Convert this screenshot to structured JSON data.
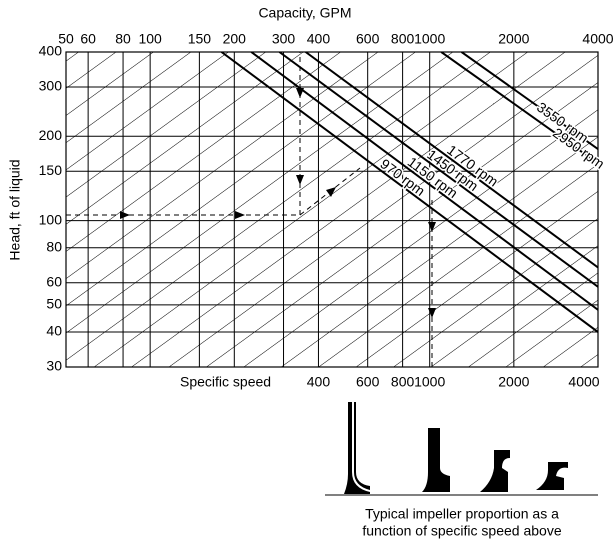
{
  "chart_data": {
    "type": "line",
    "title": "Capacity, GPM",
    "y_label": "Head, ft of liquid",
    "x2_label": "Specific speed",
    "log_x": true,
    "log_y": true,
    "grid": true,
    "color": "#000000",
    "xlim": [
      50,
      4000
    ],
    "ylim": [
      30,
      400
    ],
    "xticks": [
      50,
      60,
      80,
      100,
      150,
      200,
      300,
      400,
      600,
      800,
      1000,
      2000,
      4000
    ],
    "yticks": [
      30,
      40,
      50,
      60,
      80,
      100,
      150,
      200,
      300,
      400
    ],
    "x2ticks": [
      400,
      600,
      800,
      1000,
      2000,
      4000
    ],
    "series": [
      {
        "name": "3550 rpm",
        "x": [
          1300,
          4000
        ],
        "values": [
          400,
          180
        ]
      },
      {
        "name": "2950 rpm",
        "x": [
          1100,
          4000
        ],
        "values": [
          400,
          160
        ]
      },
      {
        "name": "1770 rpm",
        "x": [
          360,
          4000
        ],
        "values": [
          400,
          68
        ]
      },
      {
        "name": "1450 rpm",
        "x": [
          290,
          4000
        ],
        "values": [
          400,
          58
        ]
      },
      {
        "name": "1150 rpm",
        "x": [
          230,
          4000
        ],
        "values": [
          400,
          48
        ]
      },
      {
        "name": "970 rpm",
        "x": [
          180,
          4000
        ],
        "values": [
          400,
          40
        ]
      }
    ]
  },
  "caption": [
    "Typical impeller proportion as a",
    "function of specific speed above"
  ]
}
